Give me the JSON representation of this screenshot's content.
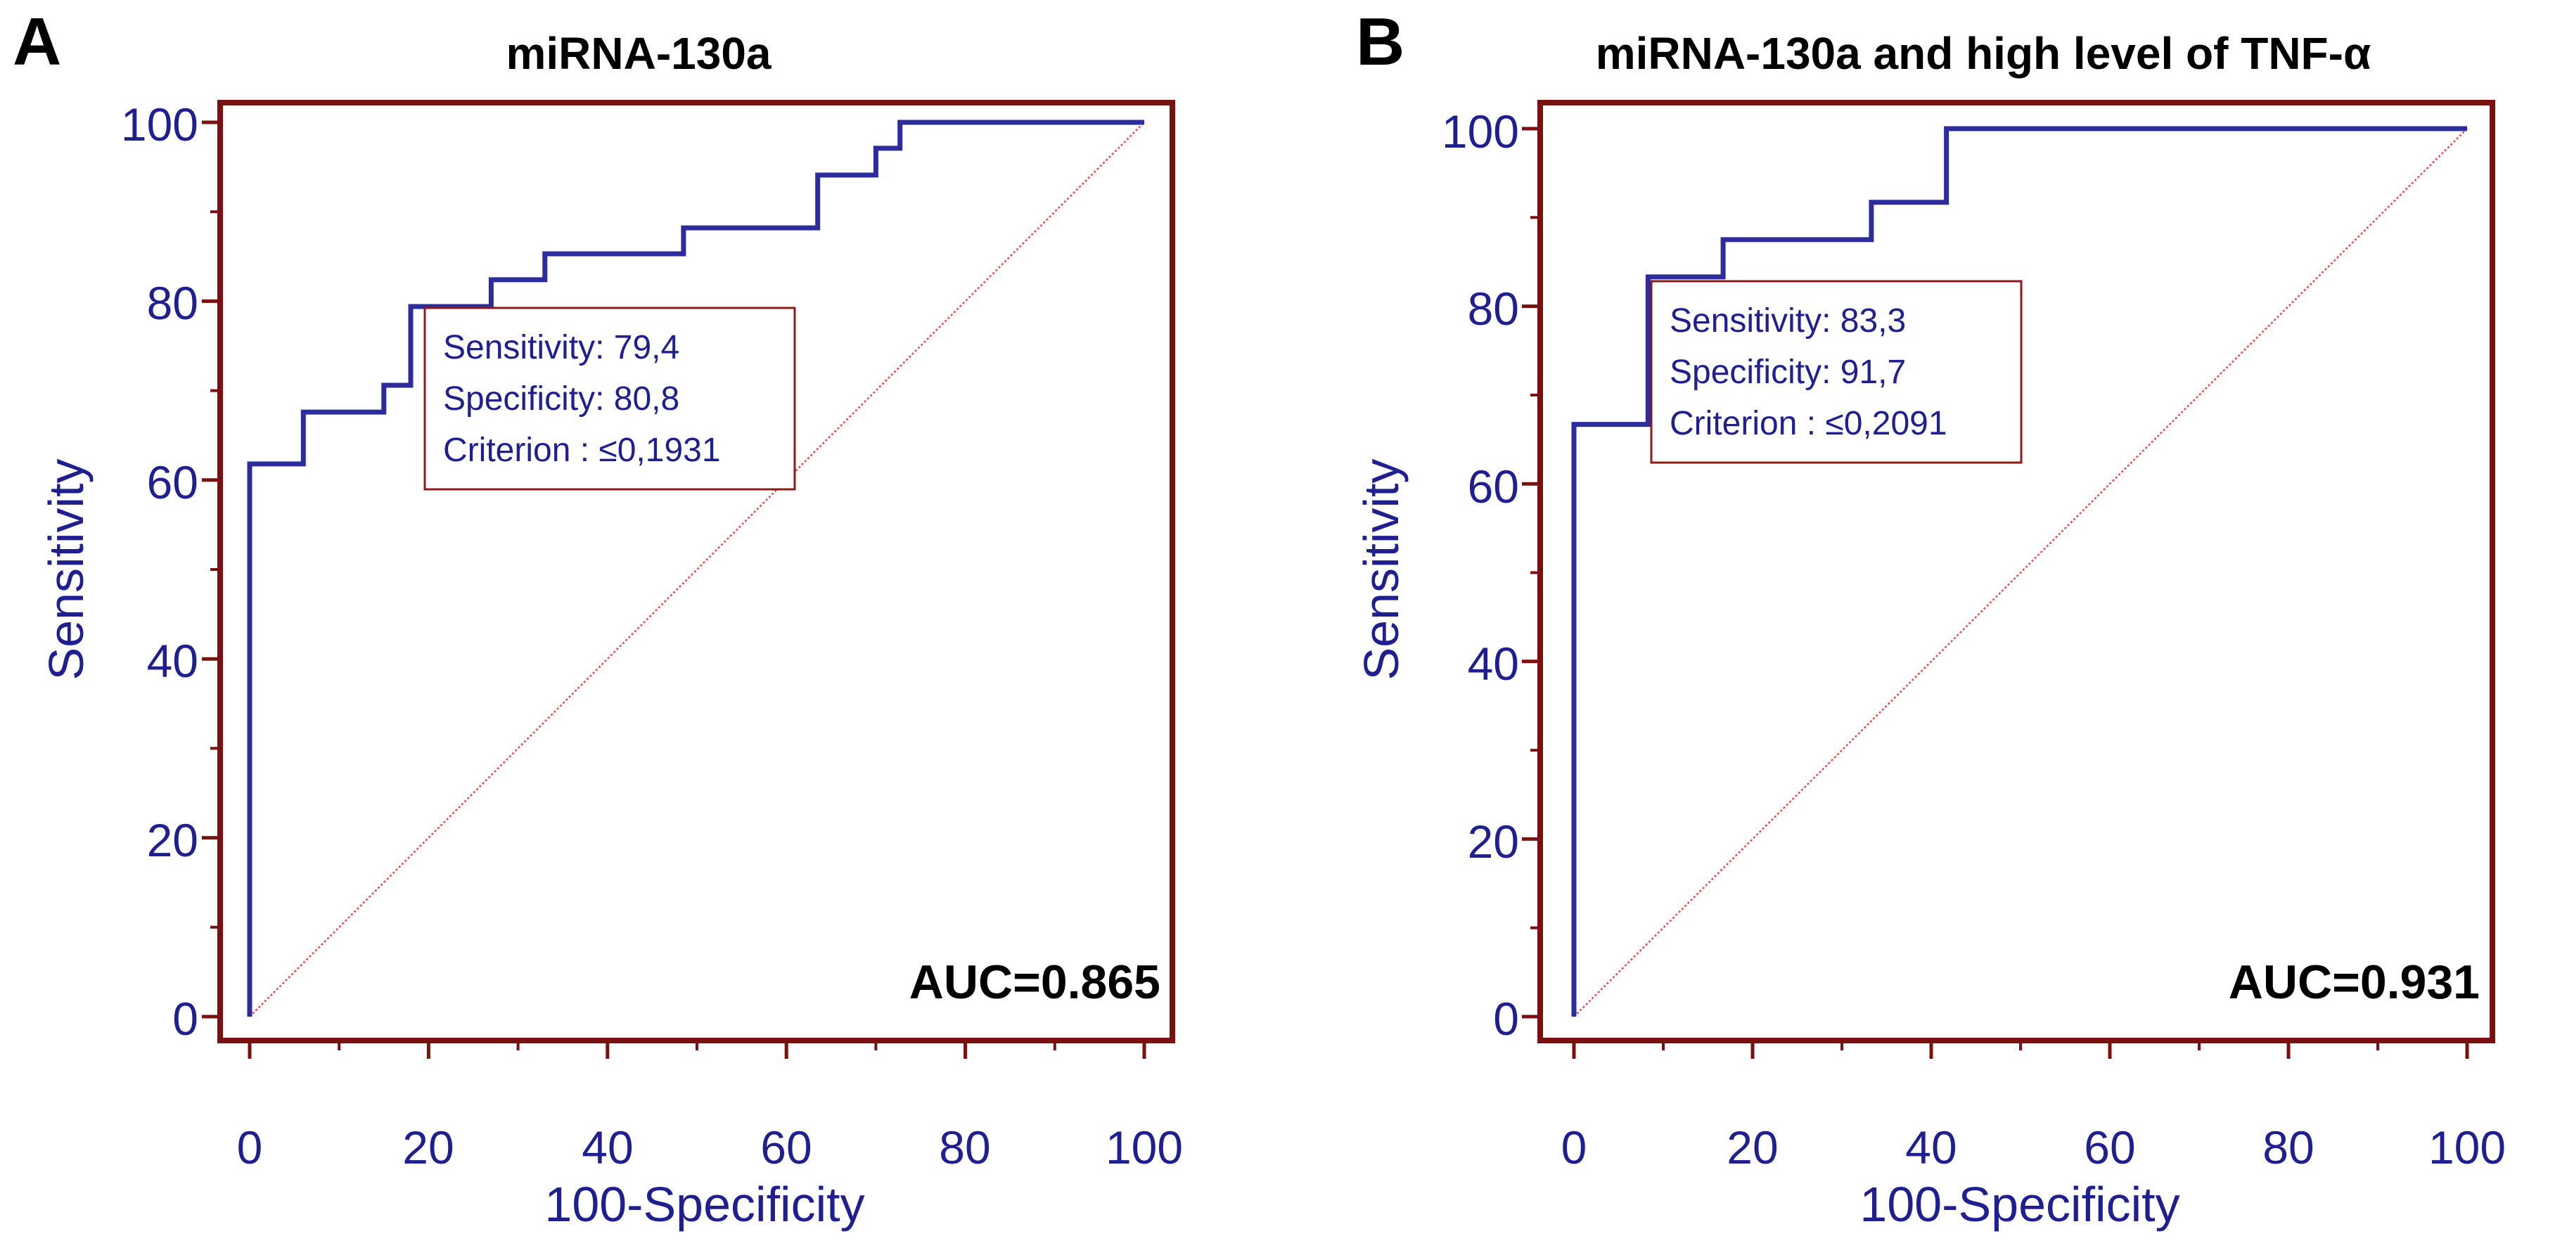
{
  "colors": {
    "frame": "#7a1010",
    "curve": "#2c2c9c",
    "diagonal": "#e05050",
    "text_blue": "#1f1f8f",
    "criterion_box": "#8b1a1a"
  },
  "chart_data": [
    {
      "type": "line",
      "panel_label": "A",
      "title": "miRNA-130a",
      "xlabel": "100-Specificity",
      "ylabel": "Sensitivity",
      "xlim": [
        0,
        100
      ],
      "ylim": [
        0,
        100
      ],
      "xticks": [
        "0",
        "20",
        "40",
        "60",
        "80",
        "100"
      ],
      "yticks": [
        "0",
        "20",
        "40",
        "60",
        "80",
        "100"
      ],
      "grid": false,
      "roc_curve": {
        "x": [
          0,
          0,
          6,
          6,
          15,
          15,
          18,
          18,
          27,
          27,
          33,
          33,
          48.5,
          48.5,
          63.5,
          63.5,
          70,
          70,
          72.7,
          72.7,
          100
        ],
        "y": [
          0,
          61.8,
          61.8,
          67.6,
          67.6,
          70.6,
          70.6,
          79.4,
          79.4,
          82.4,
          82.4,
          85.3,
          85.3,
          88.2,
          88.2,
          94.1,
          94.1,
          97.1,
          97.1,
          100,
          100
        ]
      },
      "reference_line": {
        "x": [
          0,
          100
        ],
        "y": [
          0,
          100
        ]
      },
      "criterion_box": {
        "sensitivity": "Sensitivity: 79,4",
        "specificity": "Specificity: 80,8",
        "criterion": "Criterion : ≤0,1931"
      },
      "auc_label": "AUC=0.865"
    },
    {
      "type": "line",
      "panel_label": "B",
      "title": "miRNA-130a and high level of TNF-α",
      "xlabel": "100-Specificity",
      "ylabel": "Sensitivity",
      "xlim": [
        0,
        100
      ],
      "ylim": [
        0,
        100
      ],
      "xticks": [
        "0",
        "20",
        "40",
        "60",
        "80",
        "100"
      ],
      "yticks": [
        "0",
        "20",
        "40",
        "60",
        "80",
        "100"
      ],
      "grid": false,
      "roc_curve": {
        "x": [
          0,
          0,
          8.3,
          8.3,
          16.7,
          16.7,
          33.3,
          33.3,
          41.7,
          41.7,
          100
        ],
        "y": [
          0,
          66.7,
          66.7,
          83.3,
          83.3,
          87.5,
          87.5,
          91.7,
          91.7,
          100,
          100
        ]
      },
      "reference_line": {
        "x": [
          0,
          100
        ],
        "y": [
          0,
          100
        ]
      },
      "criterion_box": {
        "sensitivity": "Sensitivity: 83,3",
        "specificity": "Specificity: 91,7",
        "criterion": "Criterion : ≤0,2091"
      },
      "auc_label": "AUC=0.931"
    }
  ]
}
